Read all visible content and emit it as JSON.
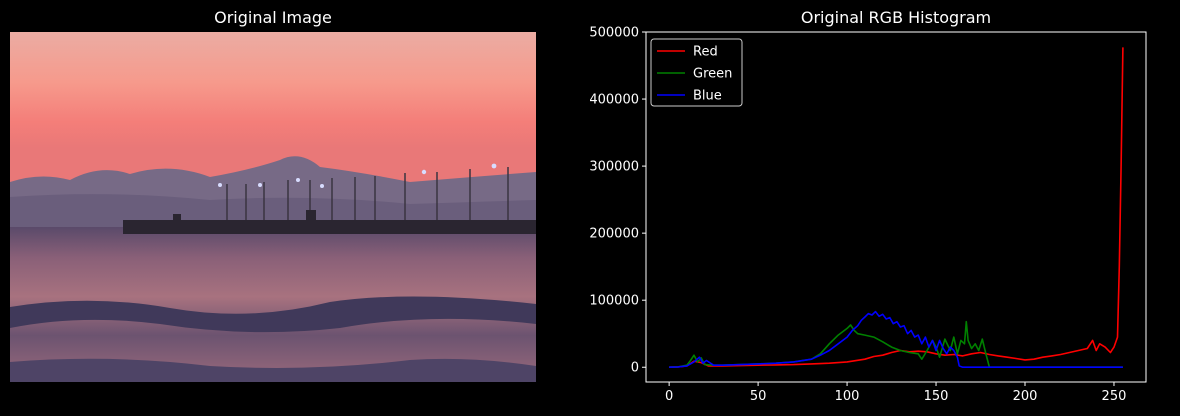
{
  "left_panel": {
    "title": "Original Image"
  },
  "right_panel": {
    "title": "Original RGB Histogram"
  },
  "chart_data": {
    "type": "line",
    "title": "Original RGB Histogram",
    "xlabel": "",
    "ylabel": "",
    "xlim": [
      -13,
      268
    ],
    "ylim": [
      -22000,
      500000
    ],
    "x_ticks": [
      0,
      50,
      100,
      150,
      200,
      250
    ],
    "y_ticks": [
      0,
      100000,
      200000,
      300000,
      400000,
      500000
    ],
    "x_tick_labels": [
      "0",
      "50",
      "100",
      "150",
      "200",
      "250"
    ],
    "y_tick_labels": [
      "0",
      "100000",
      "200000",
      "300000",
      "400000",
      "500000"
    ],
    "grid": false,
    "legend_position": "top-left",
    "series": [
      {
        "name": "Red",
        "color": "#ff0000",
        "x": [
          0,
          5,
          10,
          14,
          18,
          22,
          30,
          40,
          50,
          60,
          70,
          80,
          90,
          100,
          110,
          115,
          120,
          125,
          130,
          135,
          140,
          145,
          150,
          155,
          160,
          165,
          170,
          175,
          180,
          185,
          190,
          195,
          200,
          205,
          210,
          215,
          220,
          225,
          230,
          235,
          238,
          240,
          242,
          245,
          248,
          250,
          252,
          253,
          254,
          255
        ],
        "y": [
          0,
          500,
          2000,
          9000,
          7000,
          2000,
          2000,
          2500,
          3000,
          3500,
          4000,
          5000,
          6000,
          8000,
          12000,
          16000,
          18000,
          22000,
          25000,
          23000,
          24000,
          23000,
          20000,
          18000,
          19000,
          17000,
          20000,
          22000,
          19000,
          17000,
          15000,
          13000,
          11000,
          12000,
          15000,
          17000,
          19000,
          22000,
          25000,
          28000,
          40000,
          25000,
          35000,
          30000,
          22000,
          30000,
          45000,
          150000,
          300000,
          477000
        ]
      },
      {
        "name": "Green",
        "color": "#008000",
        "x": [
          0,
          5,
          10,
          12,
          14,
          16,
          18,
          20,
          25,
          30,
          40,
          50,
          60,
          70,
          80,
          85,
          90,
          95,
          100,
          102,
          104,
          106,
          110,
          115,
          120,
          125,
          130,
          135,
          140,
          142,
          145,
          148,
          150,
          152,
          155,
          158,
          160,
          162,
          164,
          166,
          167,
          168,
          170,
          172,
          174,
          176,
          178,
          180,
          200,
          220,
          240,
          255
        ],
        "y": [
          0,
          500,
          3000,
          10000,
          18000,
          8000,
          14000,
          4000,
          3000,
          3000,
          4000,
          5000,
          6000,
          8000,
          12000,
          20000,
          35000,
          48000,
          58000,
          63000,
          55000,
          50000,
          48000,
          45000,
          38000,
          30000,
          25000,
          22000,
          20000,
          12000,
          25000,
          40000,
          30000,
          15000,
          42000,
          25000,
          45000,
          20000,
          40000,
          35000,
          68000,
          40000,
          28000,
          35000,
          25000,
          42000,
          20000,
          0,
          0,
          0,
          0,
          0
        ]
      },
      {
        "name": "Blue",
        "color": "#0000ff",
        "x": [
          0,
          5,
          10,
          14,
          17,
          19,
          21,
          25,
          30,
          40,
          50,
          60,
          70,
          80,
          85,
          90,
          95,
          100,
          103,
          106,
          108,
          110,
          112,
          114,
          116,
          118,
          120,
          122,
          124,
          126,
          128,
          130,
          132,
          134,
          136,
          138,
          140,
          142,
          144,
          146,
          148,
          150,
          152,
          154,
          156,
          158,
          160,
          162,
          163,
          165,
          170,
          200,
          230,
          255
        ],
        "y": [
          0,
          500,
          2000,
          8000,
          15000,
          6000,
          10000,
          3000,
          3000,
          4000,
          5000,
          6000,
          8000,
          12000,
          18000,
          25000,
          35000,
          45000,
          55000,
          62000,
          70000,
          75000,
          80000,
          78000,
          83000,
          76000,
          79000,
          72000,
          74000,
          65000,
          68000,
          60000,
          62000,
          50000,
          55000,
          45000,
          48000,
          35000,
          45000,
          30000,
          40000,
          25000,
          40000,
          28000,
          20000,
          30000,
          25000,
          15000,
          2000,
          0,
          0,
          0,
          0,
          0
        ]
      }
    ]
  }
}
